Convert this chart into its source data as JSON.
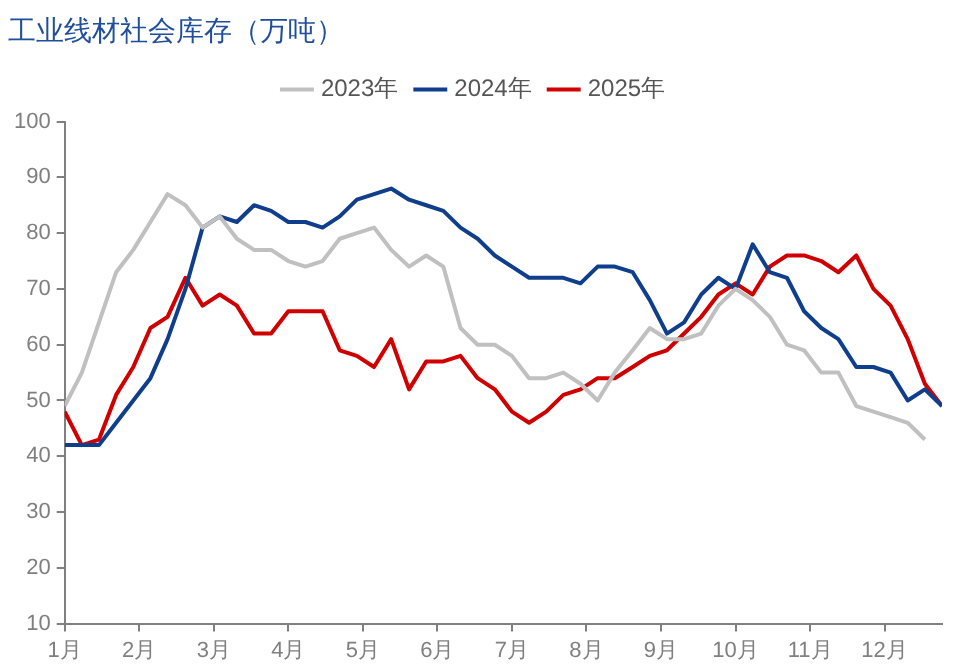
{
  "chart_data": {
    "type": "line",
    "title": "工业线材社会库存（万吨）",
    "x": [
      1.0,
      1.23,
      1.46,
      1.69,
      1.92,
      2.15,
      2.38,
      2.62,
      2.85,
      3.08,
      3.31,
      3.54,
      3.77,
      4.0,
      4.23,
      4.46,
      4.69,
      4.92,
      5.15,
      5.38,
      5.62,
      5.85,
      6.08,
      6.31,
      6.54,
      6.77,
      7.0,
      7.23,
      7.46,
      7.69,
      7.92,
      8.15,
      8.38,
      8.62,
      8.85,
      9.08,
      9.31,
      9.54,
      9.77,
      10.0,
      10.23,
      10.46,
      10.69,
      10.92,
      11.15,
      11.38,
      11.62,
      11.85,
      12.08,
      12.31,
      12.54,
      12.77
    ],
    "series": [
      {
        "name": "2023年",
        "color": "#c0c0c0",
        "values": [
          49,
          55,
          64,
          73,
          77,
          82,
          87,
          85,
          81,
          83,
          79,
          77,
          77,
          75,
          74,
          75,
          79,
          80,
          81,
          77,
          74,
          76,
          74,
          63,
          60,
          60,
          58,
          54,
          54,
          55,
          53,
          50,
          55,
          59,
          63,
          61,
          61,
          62,
          67,
          70,
          68,
          65,
          60,
          59,
          55,
          55,
          49,
          48,
          47,
          46,
          43,
          null
        ]
      },
      {
        "name": "2024年",
        "color": "#0f3f8c",
        "values": [
          42,
          42,
          42,
          46,
          50,
          54,
          61,
          70,
          81,
          83,
          82,
          85,
          84,
          82,
          82,
          81,
          83,
          86,
          87,
          88,
          86,
          85,
          84,
          81,
          79,
          76,
          74,
          72,
          72,
          72,
          71,
          74,
          74,
          73,
          68,
          62,
          64,
          69,
          72,
          70,
          78,
          73,
          72,
          66,
          63,
          61,
          56,
          56,
          55,
          50,
          52,
          49
        ]
      },
      {
        "name": "2025年",
        "color": "#d00000",
        "values": [
          48,
          42,
          43,
          51,
          56,
          63,
          65,
          72,
          67,
          69,
          67,
          62,
          62,
          66,
          66,
          66,
          59,
          58,
          56,
          61,
          52,
          57,
          57,
          58,
          54,
          52,
          48,
          46,
          48,
          51,
          52,
          54,
          54,
          56,
          58,
          59,
          62,
          65,
          69,
          71,
          69,
          74,
          76,
          76,
          75,
          73,
          76,
          70,
          67,
          61,
          53,
          49
        ]
      }
    ],
    "xlim": [
      1,
      12.77
    ],
    "xticks": [
      {
        "value": 1,
        "label": "1月"
      },
      {
        "value": 2,
        "label": "2月"
      },
      {
        "value": 3,
        "label": "3月"
      },
      {
        "value": 4,
        "label": "4月"
      },
      {
        "value": 5,
        "label": "5月"
      },
      {
        "value": 6,
        "label": "6月"
      },
      {
        "value": 7,
        "label": "7月"
      },
      {
        "value": 8,
        "label": "8月"
      },
      {
        "value": 9,
        "label": "9月"
      },
      {
        "value": 10,
        "label": "10月"
      },
      {
        "value": 11,
        "label": "11月"
      },
      {
        "value": 12,
        "label": "12月"
      }
    ],
    "ylim": [
      10,
      100
    ],
    "yticks": [
      10,
      20,
      30,
      40,
      50,
      60,
      70,
      80,
      90,
      100
    ],
    "grid": false,
    "legend": "top",
    "marker": "none",
    "line_style": "solid"
  }
}
